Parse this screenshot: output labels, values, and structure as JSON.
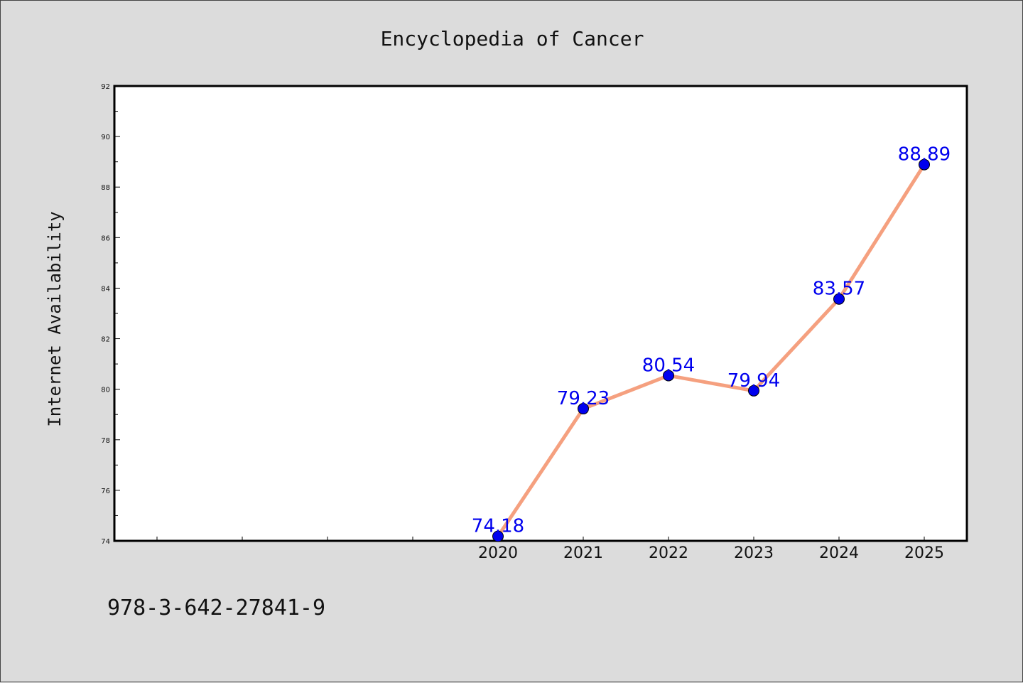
{
  "chart_data": {
    "type": "line",
    "title": "Encyclopedia of Cancer",
    "xlabel": "",
    "ylabel": "Internet Availability",
    "x": [
      "2020",
      "2021",
      "2022",
      "2023",
      "2024",
      "2025"
    ],
    "values": [
      74.18,
      79.23,
      80.54,
      79.94,
      83.57,
      88.89
    ],
    "data_labels": [
      "74.18",
      "79.23",
      "80.54",
      "79.94",
      "83.57",
      "88.89"
    ],
    "yticks": [
      "74",
      "76",
      "78",
      "80",
      "82",
      "84",
      "86",
      "88",
      "90",
      "92"
    ],
    "ylim": [
      74,
      92
    ],
    "grid": false,
    "legend": "none",
    "line_color": "#f5a07f",
    "marker_color": "#0000ee",
    "label_color": "#0000ee"
  },
  "footer": {
    "isbn": "978-3-642-27841-9"
  }
}
